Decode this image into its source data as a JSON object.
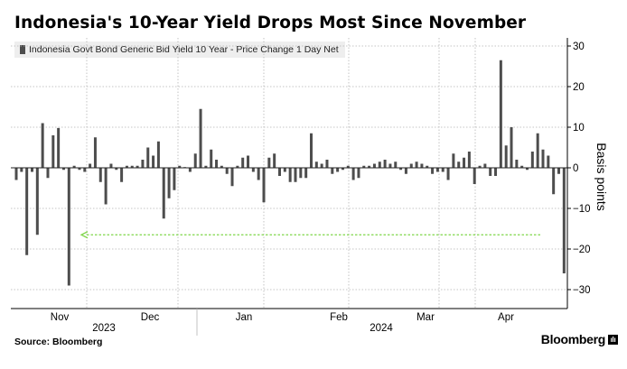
{
  "title": "Indonesia's 10-Year Yield Drops Most Since November",
  "legend": {
    "label": "Indonesia Govt Bond Generic Bid Yield 10 Year - Price Change 1 Day Net"
  },
  "source": "Source: Bloomberg",
  "brand": {
    "name": "Bloomberg",
    "mark_glyph": "ılı"
  },
  "colors": {
    "bar": "#4d4d4d",
    "grid": "#b4b4b4",
    "arrow": "#7fd64a",
    "axis": "#000000"
  },
  "chart_data": {
    "type": "bar",
    "ylabel": "Basis points",
    "y_axis_side": "right",
    "ylim": [
      -34,
      32
    ],
    "yticks": [
      30,
      20,
      10,
      0,
      -10,
      -20,
      -30
    ],
    "grid": true,
    "x_month_labels": [
      "Nov",
      "Dec",
      "Jan",
      "Feb",
      "Mar",
      "Apr"
    ],
    "x_year_labels": [
      "2023",
      "2024"
    ],
    "values": [
      -3,
      -1,
      -21.5,
      -1,
      -16.5,
      11,
      -2.5,
      8,
      9.8,
      -0.5,
      -29,
      0.5,
      -0.5,
      -1,
      1,
      7.5,
      -3.5,
      -9,
      1,
      -0.5,
      -3.5,
      0.5,
      0.5,
      0.5,
      2,
      5,
      3,
      6.5,
      -12.5,
      -7.5,
      -5.5,
      0.5,
      0,
      -1,
      3.5,
      14.5,
      0.5,
      4.5,
      2,
      0.5,
      -1.5,
      -4.5,
      0.5,
      2.5,
      3,
      -1,
      -3,
      -8.5,
      2.5,
      3.5,
      -2,
      -1,
      -3.5,
      -3.5,
      -2.5,
      -2.5,
      8.5,
      1.5,
      1,
      2,
      -1.5,
      -1,
      -0.5,
      0.5,
      -3,
      -2.5,
      0.5,
      0.5,
      1,
      1.5,
      2,
      1,
      1.5,
      -0.5,
      -1.5,
      1,
      1.5,
      1,
      0.5,
      -1.5,
      -1,
      -1,
      -3,
      3.5,
      1.5,
      2.5,
      4,
      -4,
      0.5,
      1,
      -2,
      -2,
      26.5,
      5.5,
      10,
      2,
      0.5,
      -0.5,
      4,
      8.5,
      4.5,
      3,
      -6.5,
      -1.5,
      -26
    ],
    "annotation": {
      "type": "dashed-arrow",
      "y": -16.5,
      "color": "#7fd64a",
      "note": "drawn from the last bar back to the November drop"
    }
  }
}
